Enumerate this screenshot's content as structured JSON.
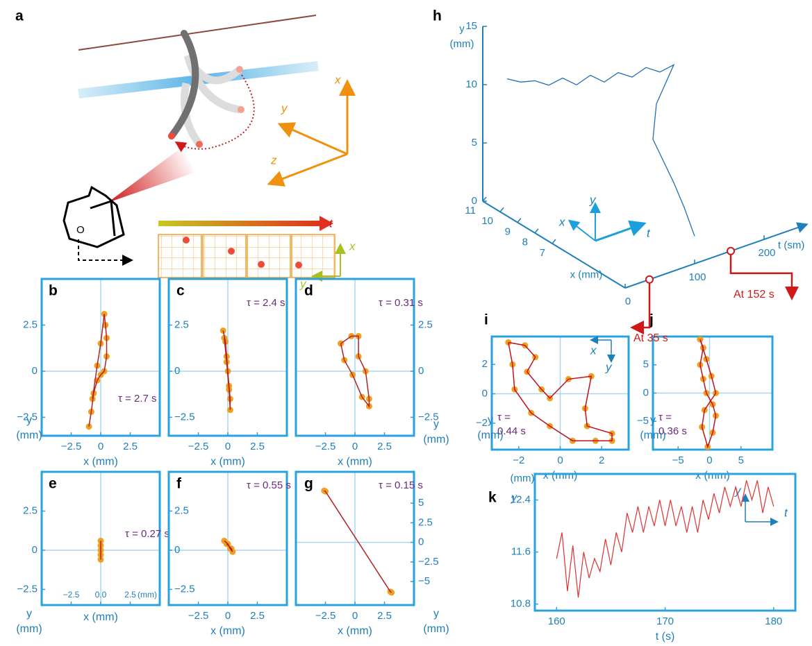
{
  "panel_a": {
    "label": "a",
    "axis_x": "x",
    "axis_y": "y",
    "axis_z": "z",
    "time_arrow": "t",
    "camera": "O",
    "grid_x": "x",
    "grid_y": "y"
  },
  "chart_data": [
    {
      "type": "scatter",
      "panel": "b",
      "annotation": "τ = 2.7 s",
      "xlabel": "x (mm)",
      "ylabel": [
        "y",
        "(mm)"
      ],
      "xlim": [
        -5,
        5
      ],
      "ylim": [
        -3.5,
        5
      ],
      "xticks": [
        {
          "value": -2.5,
          "label": "−2.5"
        },
        0,
        2.5
      ],
      "yticks": [
        2.5,
        0,
        {
          "value": -2.5,
          "label": "−2.5"
        }
      ],
      "x": [
        -1.0,
        -0.8,
        -0.6,
        -0.3,
        0.0,
        0.3,
        0.5,
        0.5,
        0.4,
        0.3,
        0.0,
        -0.3,
        -0.7
      ],
      "y": [
        -3.0,
        -2.2,
        -1.2,
        -0.5,
        -0.2,
        0.0,
        0.8,
        1.8,
        2.5,
        3.1,
        1.5,
        0.3,
        -1.5
      ],
      "color": "#f0a020",
      "line_color": "#b22222"
    },
    {
      "type": "scatter",
      "panel": "c",
      "annotation": "τ = 2.4 s",
      "xlabel": "x (mm)",
      "xlim": [
        -5,
        5
      ],
      "ylim": [
        -3.5,
        5
      ],
      "xticks": [
        {
          "value": -2.5,
          "label": "−2.5"
        },
        0,
        2.5
      ],
      "yticks": [
        2.5,
        0,
        {
          "value": -2.5,
          "label": "−2.5"
        }
      ],
      "x": [
        -0.4,
        -0.2,
        -0.1,
        0.0,
        0.1,
        0.2,
        0.2,
        0.1,
        -0.1,
        -0.3
      ],
      "y": [
        2.2,
        1.6,
        0.8,
        0.0,
        -0.8,
        -1.5,
        -2.1,
        -1.0,
        0.5,
        1.8
      ],
      "color": "#f0a020",
      "line_color": "#b22222"
    },
    {
      "type": "scatter",
      "panel": "d",
      "annotation": "τ = 0.31 s",
      "xlabel": "x (mm)",
      "ylabel": [
        "y",
        "(mm)"
      ],
      "xlim": [
        -5,
        5
      ],
      "ylim": [
        -3.5,
        5
      ],
      "xticks": [
        {
          "value": -2.5,
          "label": "−2.5"
        },
        0,
        2.5
      ],
      "yticks": [
        2.5,
        0,
        {
          "value": -2.5,
          "label": "−2.5"
        }
      ],
      "x": [
        -1.2,
        -0.3,
        0.3,
        0.3,
        0.9,
        1.2,
        1.2,
        0.6,
        -0.2,
        -0.9,
        -1.2
      ],
      "y": [
        1.5,
        1.9,
        1.9,
        0.8,
        0.0,
        -1.5,
        -1.9,
        -1.4,
        -0.2,
        0.6,
        1.5
      ],
      "color": "#f0a020",
      "line_color": "#b22222"
    },
    {
      "type": "scatter",
      "panel": "e",
      "annotation": "τ = 0.27 s",
      "xlabel": "x (mm)",
      "ylabel": [
        "y",
        "(mm)"
      ],
      "xunit": "(mm)",
      "xlim": [
        -5,
        5
      ],
      "ylim": [
        -3.5,
        5
      ],
      "xticks": [
        {
          "value": -2.5,
          "label": "−2.5"
        },
        {
          "value": 0,
          "label": "0.0"
        },
        2.5
      ],
      "yticks": [
        2.5,
        0,
        {
          "value": -2.5,
          "label": "−2.5"
        }
      ],
      "x": [
        0,
        0,
        0,
        0,
        0
      ],
      "y": [
        0.6,
        0.3,
        0,
        -0.3,
        -0.6
      ],
      "color": "#f0a020",
      "line_color": "#b22222"
    },
    {
      "type": "scatter",
      "panel": "f",
      "annotation": "τ = 0.55 s",
      "xlabel": "x (mm)",
      "xlim": [
        -5,
        5
      ],
      "ylim": [
        -3.5,
        5
      ],
      "xticks": [
        {
          "value": -2.5,
          "label": "−2.5"
        },
        0,
        2.5
      ],
      "yticks": [
        2.5,
        0,
        {
          "value": -2.5,
          "label": "−2.5"
        }
      ],
      "x": [
        -0.3,
        0.0,
        0.2,
        0.4,
        0.3,
        -0.1
      ],
      "y": [
        0.6,
        0.4,
        0.1,
        -0.1,
        0.1,
        0.4
      ],
      "color": "#f0a020",
      "line_color": "#b22222"
    },
    {
      "type": "scatter",
      "panel": "g",
      "annotation": "τ = 0.15 s",
      "xlabel": "x (mm)",
      "ylabel": [
        "y",
        "(mm)"
      ],
      "xlim": [
        -5,
        5
      ],
      "ylim": [
        -8,
        9
      ],
      "xticks": [
        {
          "value": -2.5,
          "label": "−2.5"
        },
        0,
        2.5
      ],
      "yticks": [
        5,
        2.5,
        0,
        {
          "value": -2.5,
          "label": "−2.5"
        },
        {
          "value": -5,
          "label": "−5"
        }
      ],
      "x": [
        -2.6,
        -2.5,
        3.0,
        3.1
      ],
      "y": [
        6.6,
        6.5,
        -6.3,
        -6.4
      ],
      "color": "#f0a020",
      "line_color": "#b22222"
    },
    {
      "type": "scatter",
      "panel": "i",
      "annotation": [
        "τ =",
        "0.44 s"
      ],
      "xlabel": "x (mm)",
      "ylabel": [
        "y",
        "(mm)"
      ],
      "inset": [
        "x",
        "y"
      ],
      "xlim": [
        -3.3,
        3.3
      ],
      "ylim": [
        -3.8,
        3.9
      ],
      "xticks": [
        {
          "value": -2,
          "label": "−2"
        },
        0,
        2
      ],
      "yticks": [
        2,
        0,
        {
          "value": -2,
          "label": "−2"
        }
      ],
      "x": [
        -2.5,
        -1.7,
        -1.2,
        -1.6,
        -0.9,
        -0.5,
        0.4,
        1.5,
        1.2,
        1.3,
        2.5,
        2.5,
        1.7,
        0.6,
        -0.5,
        -1.4,
        -2.2,
        -2.3,
        -2.5
      ],
      "y": [
        3.5,
        3.3,
        2.5,
        1.5,
        0.3,
        -0.3,
        1.0,
        1.2,
        -1.0,
        -2.2,
        -2.7,
        -3.2,
        -3.2,
        -3.2,
        -2.2,
        -1.3,
        0.3,
        2.0,
        3.5
      ],
      "color": "#f0a020",
      "line_color": "#c0101a"
    },
    {
      "type": "scatter",
      "panel": "j",
      "annotation": [
        "τ =",
        "0.36 s"
      ],
      "xlabel": "x (mm)",
      "ylabel": [
        "y",
        "(mm)"
      ],
      "xlim": [
        -9,
        10
      ],
      "ylim": [
        -10,
        10
      ],
      "xticks": [
        {
          "value": -5,
          "label": "−5"
        },
        0,
        5
      ],
      "yticks": [
        5,
        0,
        {
          "value": -5,
          "label": "−5"
        }
      ],
      "x": [
        -1.5,
        -1.0,
        -1.5,
        -1.0,
        -0.5,
        0.5,
        1.0,
        0.5,
        -0.3,
        -1.2,
        -0.8,
        1.0,
        0.3,
        -0.5,
        -1.5
      ],
      "y": [
        9.5,
        8,
        5,
        2.5,
        0,
        -2,
        -4,
        -7,
        -9.5,
        -6,
        -3,
        0,
        3,
        6,
        9.5
      ],
      "color": "#f0a020",
      "line_color": "#c0101a"
    },
    {
      "type": "line",
      "panel": "k",
      "xlabel": "t (s)",
      "ylabel": "y",
      "yunit": "(mm)",
      "inset": [
        "y",
        "t"
      ],
      "xlim": [
        158,
        182
      ],
      "ylim": [
        10.7,
        12.8
      ],
      "xticks": [
        160,
        170,
        180
      ],
      "yticks": [
        10.8,
        11.6,
        12.4
      ],
      "color": "#e03030",
      "x": [
        160,
        160.5,
        161,
        161.5,
        162,
        162.5,
        163,
        163.5,
        164,
        164.5,
        165,
        165.5,
        166,
        166.5,
        167,
        167.5,
        168,
        168.5,
        169,
        169.5,
        170,
        170.5,
        171,
        171.5,
        172,
        172.5,
        173,
        173.5,
        174,
        174.5,
        175,
        175.5,
        176,
        176.5,
        177,
        177.5,
        178,
        178.5,
        179,
        179.5,
        180
      ],
      "values": [
        11.5,
        11.9,
        11.0,
        11.7,
        10.9,
        11.6,
        11.2,
        11.5,
        11.3,
        11.8,
        11.4,
        11.9,
        11.6,
        12.2,
        11.9,
        12.3,
        11.9,
        12.3,
        12.0,
        12.4,
        12.0,
        12.4,
        12.0,
        12.3,
        11.9,
        12.3,
        11.9,
        12.4,
        12.1,
        12.5,
        12.2,
        12.6,
        12.3,
        12.6,
        12.3,
        12.7,
        12.4,
        12.7,
        12.2,
        12.6,
        12.3
      ]
    },
    {
      "type": "line3d",
      "panel": "h",
      "ylabel": [
        "y",
        "(mm)"
      ],
      "xlabel": "x (mm)",
      "tlabel": "t (sm)",
      "inset": [
        "y",
        "x",
        "t"
      ],
      "ylim": [
        0,
        15
      ],
      "xlim": [
        2.8,
        11
      ],
      "tlim": [
        0,
        260
      ],
      "yticks": [
        0,
        5,
        10,
        15
      ],
      "xticks": [
        7,
        8,
        9,
        10,
        11
      ],
      "tticks": [
        0,
        100,
        200
      ],
      "markers": [
        {
          "t": 35,
          "label": "At 35 s"
        },
        {
          "t": 152,
          "label": "At 152 s"
        }
      ],
      "color": "#1f6fb5",
      "t": [
        10,
        30,
        50,
        70,
        90,
        110,
        130,
        150,
        170,
        190,
        210,
        230,
        250,
        200,
        170,
        150,
        140,
        130
      ],
      "x": [
        10,
        10,
        10,
        10,
        10,
        10,
        10,
        10,
        10,
        10,
        10,
        10,
        10,
        9,
        8,
        6,
        5,
        4
      ],
      "y": [
        11.2,
        10.5,
        10.2,
        9.4,
        9.6,
        8.6,
        9.0,
        8.0,
        8.4,
        7.6,
        8.0,
        7.2,
        7.4,
        6,
        4.5,
        3,
        2,
        0.65
      ]
    }
  ]
}
